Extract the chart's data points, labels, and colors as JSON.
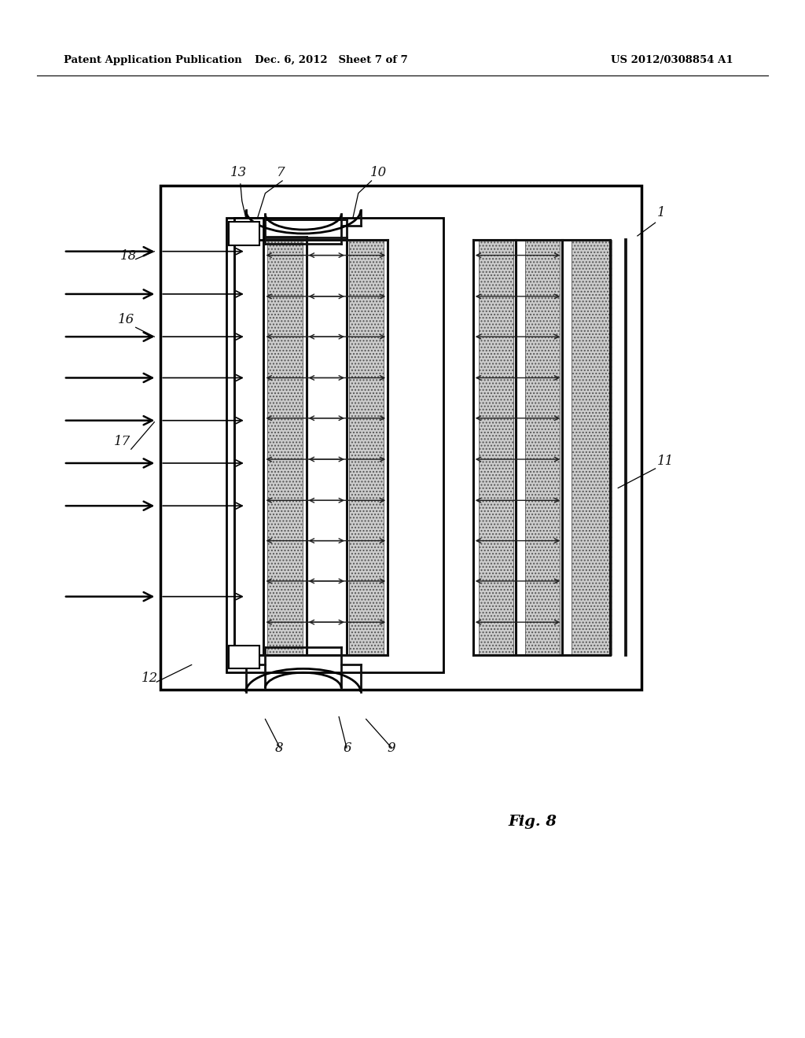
{
  "bg_color": "#ffffff",
  "header_left": "Patent Application Publication",
  "header_mid": "Dec. 6, 2012   Sheet 7 of 7",
  "header_right": "US 2012/0308854 A1",
  "fig_label": "Fig. 8",
  "line_color": "#000000"
}
